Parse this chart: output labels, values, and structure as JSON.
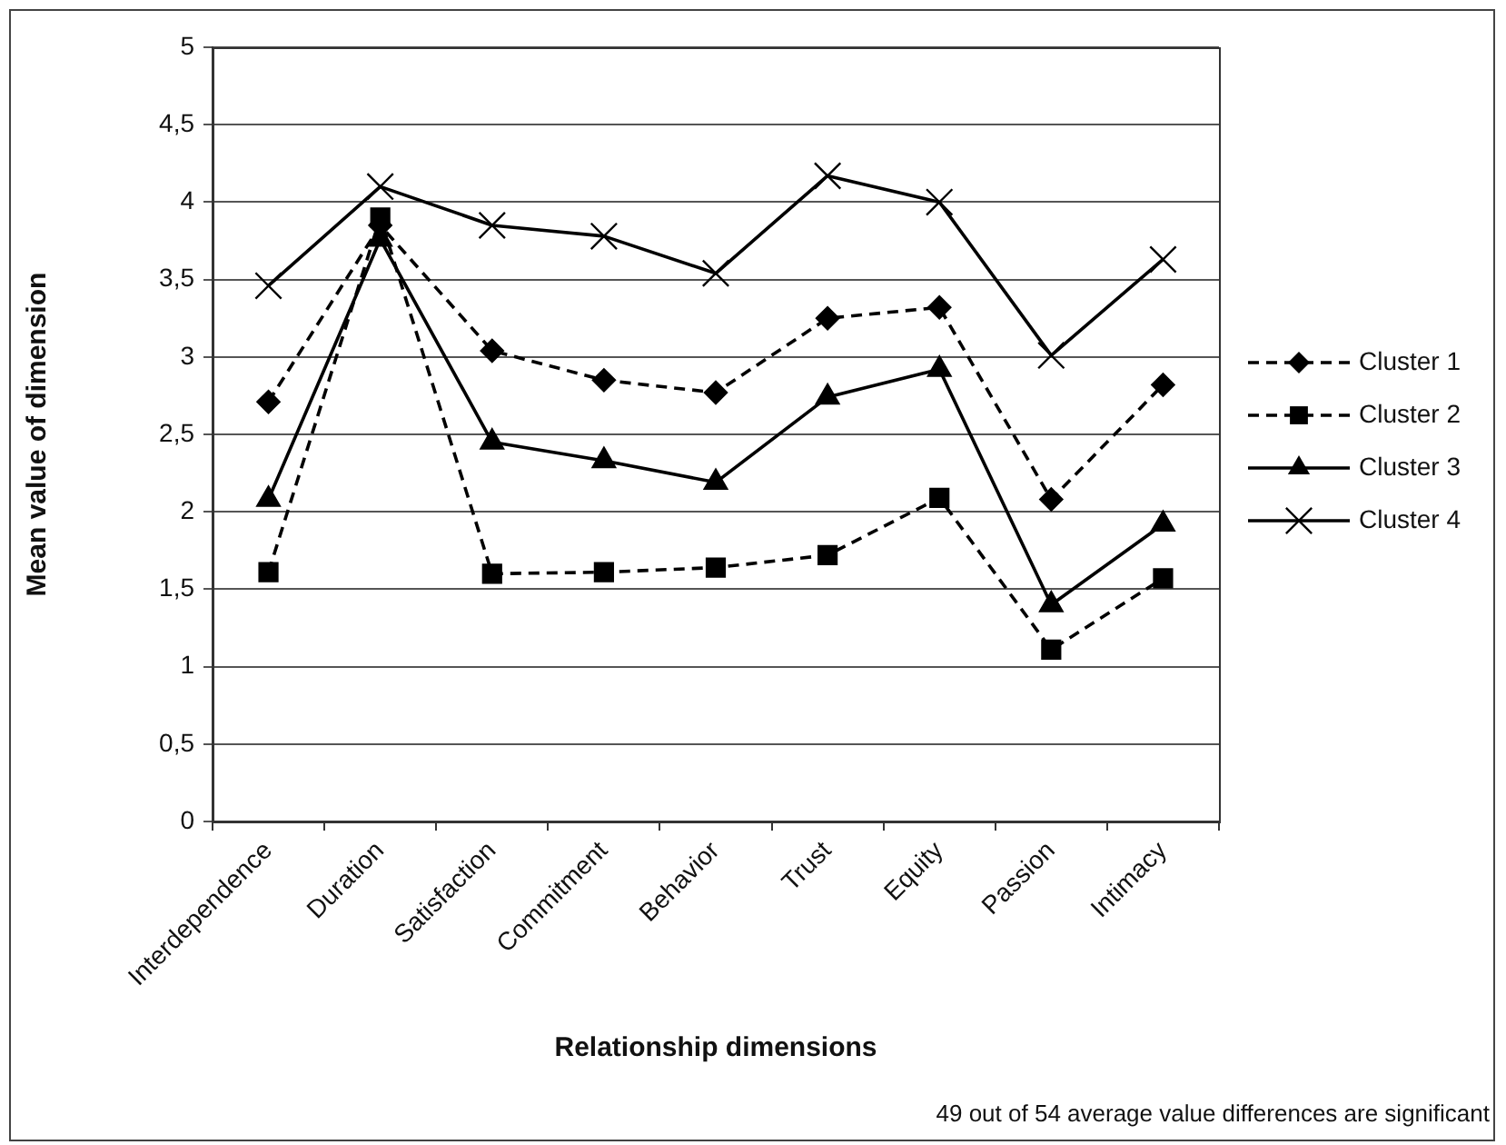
{
  "chart_data": {
    "type": "line",
    "xlabel": "Relationship dimensions",
    "ylabel": "Mean value of dimension",
    "categories": [
      "Interdependence",
      "Duration",
      "Satisfaction",
      "Commitment",
      "Behavior",
      "Trust",
      "Equity",
      "Passion",
      "Intimacy"
    ],
    "series": [
      {
        "name": "Cluster 1",
        "color": "#000000",
        "marker": "diamond",
        "line_style": "dashed",
        "values": [
          2.71,
          3.85,
          3.04,
          2.85,
          2.77,
          3.25,
          3.32,
          2.08,
          2.82
        ]
      },
      {
        "name": "Cluster 2",
        "color": "#000000",
        "marker": "square",
        "line_style": "dashed",
        "values": [
          1.61,
          3.9,
          1.6,
          1.61,
          1.64,
          1.72,
          2.09,
          1.11,
          1.57
        ]
      },
      {
        "name": "Cluster 3",
        "color": "#000000",
        "marker": "triangle",
        "line_style": "solid",
        "values": [
          2.08,
          3.76,
          2.45,
          2.33,
          2.19,
          2.74,
          2.92,
          1.4,
          1.92
        ]
      },
      {
        "name": "Cluster 4",
        "color": "#000000",
        "marker": "cross",
        "line_style": "solid",
        "values": [
          3.46,
          4.1,
          3.85,
          3.78,
          3.54,
          4.17,
          4.0,
          3.01,
          3.63
        ]
      }
    ],
    "ylim": [
      0,
      5
    ],
    "yticks": [
      0,
      {
        "value": 0.5,
        "label": "0,5"
      },
      1,
      {
        "value": 1.5,
        "label": "1,5"
      },
      2,
      {
        "value": 2.5,
        "label": "2,5"
      },
      3,
      {
        "value": 3.5,
        "label": "3,5"
      },
      4,
      {
        "value": 4.5,
        "label": "4,5"
      },
      5
    ],
    "grid": "y",
    "legend": "right",
    "annotations": [
      "49 out of 54 average value differences are significant"
    ]
  }
}
